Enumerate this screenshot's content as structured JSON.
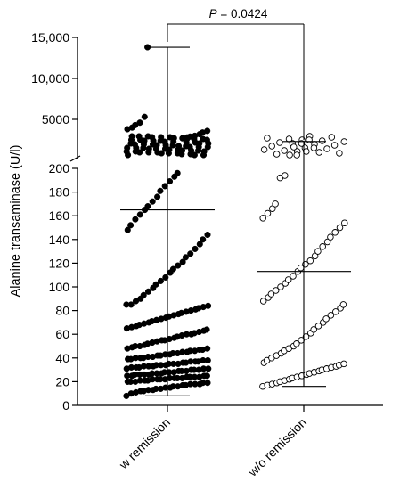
{
  "chart_data": {
    "type": "scatter",
    "subtype": "dot-plot with median and range bars, broken y-axis",
    "ylabel": "Alanine transaminase (U/l)",
    "categories": [
      "w remission",
      "w/o remission"
    ],
    "y_axis_segments": [
      {
        "range": [
          0,
          200
        ],
        "ticks": [
          0,
          20,
          40,
          60,
          80,
          100,
          120,
          140,
          160,
          180,
          200
        ],
        "tick_labels": [
          "0",
          "20",
          "40",
          "60",
          "80",
          "100",
          "120",
          "140",
          "160",
          "180",
          "200"
        ]
      },
      {
        "range": [
          200,
          15000
        ],
        "ticks": [
          5000,
          10000,
          15000
        ],
        "tick_labels": [
          "5000",
          "10,000",
          "15,000"
        ]
      }
    ],
    "axis_break": "between 200 and ~500",
    "series": [
      {
        "name": "w remission",
        "marker": "filled circle",
        "color": "#000000",
        "summary": {
          "median": 165,
          "min": 8,
          "max": 13800
        },
        "values_low": [
          8,
          10,
          11,
          12,
          12,
          13,
          13,
          14,
          14,
          15,
          15,
          16,
          16,
          17,
          17,
          18,
          18,
          18,
          19,
          19,
          20,
          20,
          20,
          21,
          21,
          21,
          22,
          22,
          22,
          22,
          23,
          23,
          23,
          23,
          24,
          24,
          24,
          24,
          25,
          25,
          25,
          25,
          26,
          26,
          26,
          26,
          27,
          27,
          27,
          28,
          28,
          28,
          29,
          29,
          29,
          30,
          30,
          30,
          31,
          31,
          31,
          32,
          32,
          32,
          33,
          33,
          33,
          34,
          34,
          34,
          35,
          35,
          35,
          36,
          36,
          37,
          37,
          37,
          38,
          38,
          39,
          39,
          40,
          40,
          40,
          41,
          41,
          42,
          42,
          43,
          43,
          44,
          44,
          45,
          45,
          46,
          46,
          47,
          47,
          48,
          48,
          49,
          50,
          50,
          51,
          52,
          53,
          54,
          55,
          55,
          56,
          57,
          58,
          59,
          60,
          60,
          61,
          62,
          63,
          64,
          65,
          66,
          67,
          68,
          69,
          70,
          71,
          72,
          73,
          74,
          75,
          76,
          77,
          78,
          79,
          80,
          81,
          82,
          83,
          84,
          85,
          85,
          88,
          90,
          93,
          96,
          99,
          102,
          105,
          108,
          112,
          115,
          118,
          121,
          125,
          128,
          132,
          136,
          140,
          144,
          148,
          152,
          157,
          161,
          165,
          168,
          172,
          176,
          181,
          185,
          189,
          193,
          196
        ],
        "values_high": [
          500,
          520,
          540,
          560,
          580,
          600,
          620,
          640,
          660,
          680,
          700,
          720,
          740,
          760,
          780,
          800,
          820,
          840,
          860,
          880,
          900,
          920,
          940,
          960,
          980,
          1000,
          1030,
          1060,
          1090,
          1120,
          1150,
          1180,
          1210,
          1240,
          1270,
          1300,
          1330,
          1360,
          1390,
          1420,
          1450,
          1480,
          1510,
          1540,
          1570,
          1600,
          1650,
          1700,
          1750,
          1800,
          1850,
          1900,
          1950,
          2000,
          2100,
          2200,
          2300,
          2400,
          2500,
          2600,
          2700,
          2800,
          2900,
          3000,
          3200,
          3400,
          3600,
          3800,
          4000,
          4300,
          4600,
          5300,
          13800
        ]
      },
      {
        "name": "w/o remission",
        "marker": "open circle",
        "color": "#000000",
        "summary": {
          "median": 113,
          "min": 16,
          "max": 2300
        },
        "values_low": [
          16,
          17,
          18,
          19,
          20,
          21,
          22,
          23,
          24,
          25,
          26,
          27,
          28,
          29,
          30,
          31,
          32,
          33,
          34,
          35,
          36,
          38,
          40,
          42,
          44,
          46,
          48,
          50,
          52,
          55,
          58,
          61,
          64,
          67,
          70,
          73,
          76,
          79,
          82,
          85,
          88,
          91,
          94,
          97,
          100,
          103,
          106,
          109,
          113,
          116,
          119,
          122,
          126,
          130,
          134,
          138,
          142,
          146,
          150,
          154,
          158,
          162,
          166,
          170,
          192,
          194
        ],
        "values_high": [
          500,
          550,
          600,
          650,
          700,
          750,
          800,
          850,
          900,
          950,
          1000,
          1050,
          1100,
          1150,
          1200,
          1250,
          1300,
          1350,
          1400,
          1450,
          1500,
          1550,
          1600,
          1700,
          1800,
          2000,
          2300
        ]
      }
    ],
    "annotation": {
      "text_italic": "P",
      "text_rest": " = 0.0424"
    },
    "grid": false,
    "legend": "none"
  }
}
